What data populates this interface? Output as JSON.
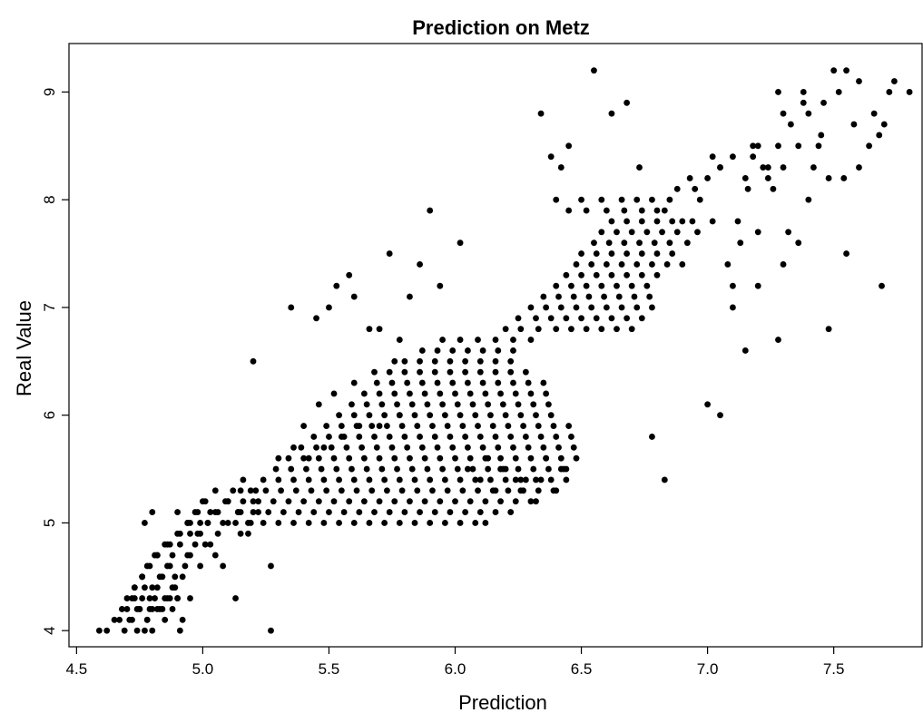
{
  "chart_data": {
    "type": "scatter",
    "title": "Prediction on Metz",
    "xlabel": "Prediction",
    "ylabel": "Real Value",
    "xlim": [
      4.47,
      7.85
    ],
    "ylim": [
      3.85,
      9.45
    ],
    "xticks": [
      "4.5",
      "5.0",
      "5.5",
      "6.0",
      "6.5",
      "7.0",
      "7.5"
    ],
    "yticks": [
      "4",
      "5",
      "6",
      "7",
      "8",
      "9"
    ],
    "grid": false,
    "legend": "none",
    "series": [
      {
        "x": [
          4.59,
          4.62,
          4.65,
          4.69,
          4.72,
          4.74,
          4.75,
          4.77,
          4.78,
          4.8,
          4.82,
          4.85,
          4.88,
          4.91,
          4.92,
          4.67,
          4.7,
          4.72,
          4.74,
          4.76,
          4.78,
          4.8,
          4.84,
          4.87,
          4.9,
          4.68,
          4.71,
          4.73,
          4.75,
          4.77,
          4.79,
          4.81,
          4.83,
          4.85,
          4.88,
          4.9,
          4.95,
          4.7,
          4.73,
          4.76,
          4.79,
          4.82,
          4.84,
          4.86,
          4.89,
          4.92,
          4.73,
          4.76,
          4.8,
          4.83,
          4.86,
          4.89,
          4.93,
          4.76,
          4.79,
          4.82,
          4.87,
          4.95,
          4.99,
          4.78,
          4.81,
          4.85,
          4.88,
          4.94,
          4.97,
          5.01,
          5.05,
          4.82,
          4.86,
          4.91,
          4.95,
          4.99,
          5.03,
          5.15,
          5.18,
          4.87,
          4.9,
          4.94,
          4.98,
          5.02,
          5.06,
          5.13,
          5.19,
          5.27,
          4.91,
          4.95,
          4.99,
          5.03,
          5.08,
          5.14,
          5.22,
          4.94,
          4.98,
          5.02,
          5.06,
          5.1,
          5.15,
          5.2,
          4.97,
          5.01,
          5.05,
          5.1,
          5.15,
          5.0,
          5.05,
          5.09,
          5.12,
          5.16,
          5.21,
          5.13,
          4.77,
          4.8,
          4.9,
          5.27,
          5.08,
          5.2,
          5.1,
          5.18,
          5.24,
          5.3,
          5.36,
          5.42,
          5.48,
          5.54,
          5.6,
          5.66,
          5.72,
          5.78,
          5.84,
          5.9,
          5.96,
          6.02,
          6.08,
          6.12,
          5.14,
          5.2,
          5.26,
          5.32,
          5.38,
          5.44,
          5.5,
          5.56,
          5.62,
          5.68,
          5.74,
          5.8,
          5.86,
          5.92,
          5.98,
          6.04,
          6.1,
          6.16,
          6.22,
          5.16,
          5.22,
          5.28,
          5.34,
          5.4,
          5.46,
          5.52,
          5.58,
          5.64,
          5.7,
          5.76,
          5.82,
          5.88,
          5.94,
          6.0,
          6.06,
          6.12,
          6.18,
          6.24,
          6.3,
          5.19,
          5.25,
          5.31,
          5.37,
          5.43,
          5.49,
          5.55,
          5.61,
          5.67,
          5.73,
          5.79,
          5.85,
          5.91,
          5.97,
          6.03,
          6.09,
          6.15,
          6.21,
          6.27,
          6.33,
          6.39,
          5.24,
          5.3,
          5.36,
          5.42,
          5.48,
          5.54,
          5.6,
          5.66,
          5.72,
          5.78,
          5.84,
          5.9,
          5.96,
          6.02,
          6.08,
          6.14,
          6.2,
          6.26,
          6.32,
          6.38,
          6.44,
          5.29,
          5.35,
          5.41,
          5.47,
          5.53,
          5.59,
          5.65,
          5.71,
          5.77,
          5.83,
          5.89,
          5.95,
          6.01,
          6.07,
          6.13,
          6.19,
          6.25,
          6.31,
          6.37,
          6.43,
          5.34,
          5.4,
          5.46,
          5.52,
          5.58,
          5.64,
          5.7,
          5.76,
          5.82,
          5.88,
          5.94,
          6.0,
          6.06,
          6.12,
          6.18,
          6.24,
          6.3,
          6.36,
          6.42,
          6.48,
          5.39,
          5.45,
          5.51,
          5.57,
          5.63,
          5.69,
          5.75,
          5.81,
          5.87,
          5.93,
          5.99,
          6.05,
          6.11,
          6.17,
          6.23,
          6.29,
          6.35,
          6.41,
          6.47,
          5.44,
          5.5,
          5.56,
          5.62,
          5.68,
          5.74,
          5.8,
          5.86,
          5.92,
          5.98,
          6.04,
          6.1,
          6.16,
          6.22,
          6.28,
          6.34,
          6.4,
          6.46,
          5.49,
          5.55,
          5.61,
          5.67,
          5.73,
          5.79,
          5.85,
          5.91,
          5.97,
          6.03,
          6.09,
          6.15,
          6.21,
          6.27,
          6.33,
          6.39,
          6.45,
          5.54,
          5.6,
          5.66,
          5.72,
          5.78,
          5.84,
          5.9,
          5.96,
          6.02,
          6.08,
          6.14,
          6.2,
          6.26,
          6.32,
          6.38,
          5.59,
          5.65,
          5.71,
          5.77,
          5.83,
          5.89,
          5.95,
          6.01,
          6.07,
          6.13,
          6.19,
          6.25,
          6.31,
          6.37,
          5.64,
          5.7,
          5.76,
          5.82,
          5.88,
          5.94,
          6.0,
          6.06,
          6.12,
          6.18,
          6.24,
          6.3,
          6.36,
          5.69,
          5.75,
          5.81,
          5.87,
          5.93,
          5.99,
          6.05,
          6.11,
          6.17,
          6.23,
          6.29,
          6.35,
          5.74,
          5.8,
          5.86,
          5.92,
          5.98,
          6.04,
          6.1,
          6.16,
          6.22,
          6.28,
          5.8,
          5.86,
          5.92,
          5.98,
          6.04,
          6.1,
          6.16,
          6.22,
          5.87,
          5.93,
          5.99,
          6.05,
          6.11,
          6.17,
          6.23,
          5.95,
          6.02,
          6.09,
          6.16,
          6.23,
          6.3,
          5.3,
          5.36,
          5.42,
          5.48,
          5.55,
          5.62,
          5.7,
          5.78,
          5.4,
          5.46,
          5.52,
          5.6,
          5.68,
          5.76,
          6.2,
          6.26,
          6.33,
          6.4,
          6.46,
          6.52,
          6.58,
          6.64,
          6.7,
          6.25,
          6.32,
          6.38,
          6.44,
          6.5,
          6.56,
          6.62,
          6.68,
          6.74,
          6.3,
          6.36,
          6.42,
          6.48,
          6.54,
          6.6,
          6.66,
          6.72,
          6.78,
          6.35,
          6.41,
          6.47,
          6.53,
          6.59,
          6.65,
          6.71,
          6.77,
          6.4,
          6.46,
          6.52,
          6.58,
          6.64,
          6.7,
          6.76,
          6.44,
          6.5,
          6.56,
          6.62,
          6.68,
          6.74,
          6.8,
          6.48,
          6.54,
          6.6,
          6.66,
          6.72,
          6.78,
          6.84,
          6.9,
          6.5,
          6.56,
          6.62,
          6.68,
          6.74,
          6.8,
          6.86,
          6.55,
          6.61,
          6.67,
          6.73,
          6.79,
          6.85,
          6.92,
          6.58,
          6.64,
          6.7,
          6.76,
          6.82,
          6.88,
          6.96,
          6.62,
          6.68,
          6.74,
          6.8,
          6.86,
          6.94,
          7.02,
          6.45,
          6.52,
          6.6,
          6.67,
          6.74,
          6.83,
          6.4,
          6.5,
          6.58,
          6.66,
          6.72,
          6.78,
          5.35,
          5.45,
          5.53,
          5.6,
          5.7,
          5.78,
          5.86,
          5.94,
          6.02,
          5.5,
          5.58,
          5.66,
          5.74,
          5.82,
          5.9,
          6.05,
          6.13,
          6.2,
          6.28,
          6.36,
          6.44,
          6.1,
          6.18,
          6.26,
          6.34,
          6.42,
          6.16,
          6.24,
          6.32,
          6.4,
          6.42,
          6.45,
          6.38,
          6.34,
          6.55,
          6.62,
          6.68,
          6.73,
          6.88,
          6.93,
          6.97,
          7.05,
          7.1,
          7.15,
          7.2,
          7.24,
          7.28,
          6.8,
          6.85,
          6.9,
          6.95,
          7.0,
          7.08,
          7.13,
          7.18,
          7.22,
          7.02,
          7.1,
          7.16,
          7.2,
          7.26,
          7.3,
          7.36,
          7.05,
          7.12,
          7.18,
          7.24,
          7.32,
          7.38,
          7.45,
          7.28,
          7.33,
          7.38,
          7.44,
          7.5,
          7.55,
          7.6,
          7.66,
          7.72,
          7.8,
          7.3,
          7.36,
          7.42,
          7.48,
          7.54,
          7.6,
          7.68,
          7.74,
          7.4,
          7.46,
          7.52,
          7.58,
          7.64,
          7.7,
          7.1,
          7.2,
          7.3,
          7.4,
          7.48,
          7.55,
          7.69,
          7.15,
          7.05,
          7.0,
          7.28,
          6.83,
          6.78
        ],
        "y": [
          4.0,
          4.0,
          4.1,
          4.0,
          4.1,
          4.0,
          4.2,
          4.0,
          4.1,
          4.0,
          4.2,
          4.1,
          4.2,
          4.0,
          4.1,
          4.1,
          4.2,
          4.3,
          4.2,
          4.3,
          4.1,
          4.2,
          4.2,
          4.3,
          4.3,
          4.2,
          4.1,
          4.3,
          4.2,
          4.4,
          4.2,
          4.3,
          4.2,
          4.3,
          4.4,
          4.3,
          4.3,
          4.3,
          4.4,
          4.5,
          4.3,
          4.4,
          4.5,
          4.3,
          4.4,
          4.5,
          4.4,
          4.5,
          4.4,
          4.5,
          4.6,
          4.5,
          4.6,
          4.5,
          4.6,
          4.7,
          4.6,
          4.7,
          4.6,
          4.6,
          4.7,
          4.8,
          4.7,
          4.7,
          4.8,
          4.8,
          4.7,
          4.7,
          4.8,
          4.8,
          4.9,
          4.9,
          4.8,
          4.9,
          4.9,
          4.8,
          4.9,
          5.0,
          4.9,
          5.0,
          4.9,
          5.0,
          5.0,
          4.6,
          4.9,
          5.0,
          5.0,
          5.1,
          5.0,
          5.1,
          5.1,
          5.0,
          5.1,
          5.0,
          5.1,
          5.2,
          5.1,
          5.2,
          5.1,
          5.2,
          5.1,
          5.2,
          5.3,
          5.2,
          5.3,
          5.2,
          5.3,
          5.4,
          5.3,
          4.3,
          5.0,
          5.1,
          5.1,
          4.0,
          4.6,
          6.5,
          5.0,
          5.0,
          5.0,
          5.0,
          5.0,
          5.0,
          5.0,
          5.0,
          5.0,
          5.0,
          5.0,
          5.0,
          5.0,
          5.0,
          5.0,
          5.0,
          5.0,
          5.0,
          5.1,
          5.1,
          5.1,
          5.1,
          5.1,
          5.1,
          5.1,
          5.1,
          5.1,
          5.1,
          5.1,
          5.1,
          5.1,
          5.1,
          5.1,
          5.1,
          5.1,
          5.1,
          5.1,
          5.2,
          5.2,
          5.2,
          5.2,
          5.2,
          5.2,
          5.2,
          5.2,
          5.2,
          5.2,
          5.2,
          5.2,
          5.2,
          5.2,
          5.2,
          5.2,
          5.2,
          5.2,
          5.2,
          5.2,
          5.3,
          5.3,
          5.3,
          5.3,
          5.3,
          5.3,
          5.3,
          5.3,
          5.3,
          5.3,
          5.3,
          5.3,
          5.3,
          5.3,
          5.3,
          5.3,
          5.3,
          5.3,
          5.3,
          5.3,
          5.3,
          5.4,
          5.4,
          5.4,
          5.4,
          5.4,
          5.4,
          5.4,
          5.4,
          5.4,
          5.4,
          5.4,
          5.4,
          5.4,
          5.4,
          5.4,
          5.4,
          5.4,
          5.4,
          5.4,
          5.4,
          5.4,
          5.5,
          5.5,
          5.5,
          5.5,
          5.5,
          5.5,
          5.5,
          5.5,
          5.5,
          5.5,
          5.5,
          5.5,
          5.5,
          5.5,
          5.5,
          5.5,
          5.5,
          5.5,
          5.5,
          5.5,
          5.6,
          5.6,
          5.6,
          5.6,
          5.6,
          5.6,
          5.6,
          5.6,
          5.6,
          5.6,
          5.6,
          5.6,
          5.6,
          5.6,
          5.6,
          5.6,
          5.6,
          5.6,
          5.6,
          5.6,
          5.7,
          5.7,
          5.7,
          5.7,
          5.7,
          5.7,
          5.7,
          5.7,
          5.7,
          5.7,
          5.7,
          5.7,
          5.7,
          5.7,
          5.7,
          5.7,
          5.7,
          5.7,
          5.7,
          5.8,
          5.8,
          5.8,
          5.8,
          5.8,
          5.8,
          5.8,
          5.8,
          5.8,
          5.8,
          5.8,
          5.8,
          5.8,
          5.8,
          5.8,
          5.8,
          5.8,
          5.8,
          5.9,
          5.9,
          5.9,
          5.9,
          5.9,
          5.9,
          5.9,
          5.9,
          5.9,
          5.9,
          5.9,
          5.9,
          5.9,
          5.9,
          5.9,
          5.9,
          5.9,
          6.0,
          6.0,
          6.0,
          6.0,
          6.0,
          6.0,
          6.0,
          6.0,
          6.0,
          6.0,
          6.0,
          6.0,
          6.0,
          6.0,
          6.0,
          6.1,
          6.1,
          6.1,
          6.1,
          6.1,
          6.1,
          6.1,
          6.1,
          6.1,
          6.1,
          6.1,
          6.1,
          6.1,
          6.1,
          6.2,
          6.2,
          6.2,
          6.2,
          6.2,
          6.2,
          6.2,
          6.2,
          6.2,
          6.2,
          6.2,
          6.2,
          6.2,
          6.3,
          6.3,
          6.3,
          6.3,
          6.3,
          6.3,
          6.3,
          6.3,
          6.3,
          6.3,
          6.3,
          6.3,
          6.4,
          6.4,
          6.4,
          6.4,
          6.4,
          6.4,
          6.4,
          6.4,
          6.4,
          6.4,
          6.5,
          6.5,
          6.5,
          6.5,
          6.5,
          6.5,
          6.5,
          6.5,
          6.6,
          6.6,
          6.6,
          6.6,
          6.6,
          6.6,
          6.6,
          6.7,
          6.7,
          6.7,
          6.7,
          6.7,
          6.7,
          5.6,
          5.7,
          5.6,
          5.7,
          5.8,
          5.9,
          5.9,
          6.0,
          5.9,
          6.1,
          6.2,
          6.3,
          6.4,
          6.5,
          6.8,
          6.8,
          6.8,
          6.8,
          6.8,
          6.8,
          6.8,
          6.8,
          6.8,
          6.9,
          6.9,
          6.9,
          6.9,
          6.9,
          6.9,
          6.9,
          6.9,
          6.9,
          7.0,
          7.0,
          7.0,
          7.0,
          7.0,
          7.0,
          7.0,
          7.0,
          7.0,
          7.1,
          7.1,
          7.1,
          7.1,
          7.1,
          7.1,
          7.1,
          7.1,
          7.2,
          7.2,
          7.2,
          7.2,
          7.2,
          7.2,
          7.2,
          7.3,
          7.3,
          7.3,
          7.3,
          7.3,
          7.3,
          7.3,
          7.4,
          7.4,
          7.4,
          7.4,
          7.4,
          7.4,
          7.4,
          7.4,
          7.5,
          7.5,
          7.5,
          7.5,
          7.5,
          7.5,
          7.5,
          7.6,
          7.6,
          7.6,
          7.6,
          7.6,
          7.6,
          7.6,
          7.7,
          7.7,
          7.7,
          7.7,
          7.7,
          7.7,
          7.7,
          7.8,
          7.8,
          7.8,
          7.8,
          7.8,
          7.8,
          7.8,
          7.9,
          7.9,
          7.9,
          7.9,
          7.9,
          7.9,
          8.0,
          8.0,
          8.0,
          8.0,
          8.0,
          8.0,
          7.0,
          6.9,
          7.2,
          7.1,
          6.8,
          6.7,
          7.4,
          7.2,
          7.6,
          7.0,
          7.3,
          6.8,
          7.5,
          7.1,
          7.9,
          5.5,
          5.6,
          5.5,
          5.4,
          5.6,
          5.5,
          5.4,
          5.5,
          5.3,
          5.4,
          5.5,
          5.3,
          5.4,
          5.2,
          5.3,
          8.3,
          8.5,
          8.4,
          8.8,
          9.2,
          8.8,
          8.9,
          8.3,
          8.1,
          8.2,
          8.0,
          8.3,
          8.4,
          8.2,
          8.5,
          8.3,
          8.5,
          7.9,
          8.0,
          7.8,
          8.1,
          8.2,
          7.4,
          7.6,
          8.5,
          8.3,
          8.4,
          7.2,
          8.1,
          7.7,
          8.1,
          8.8,
          7.6,
          8.3,
          7.8,
          8.4,
          8.2,
          7.7,
          8.9,
          8.6,
          9.0,
          8.7,
          9.0,
          8.5,
          9.2,
          9.2,
          9.1,
          8.8,
          9.0,
          9.0,
          8.3,
          8.5,
          8.3,
          8.2,
          8.2,
          8.3,
          8.6,
          9.1,
          8.8,
          8.9,
          9.0,
          8.7,
          8.5,
          8.7,
          7.0,
          7.2,
          7.4,
          8.0,
          6.8,
          7.5,
          7.2,
          6.6,
          6.0,
          6.1,
          6.7,
          5.4,
          5.8
        ]
      }
    ]
  }
}
